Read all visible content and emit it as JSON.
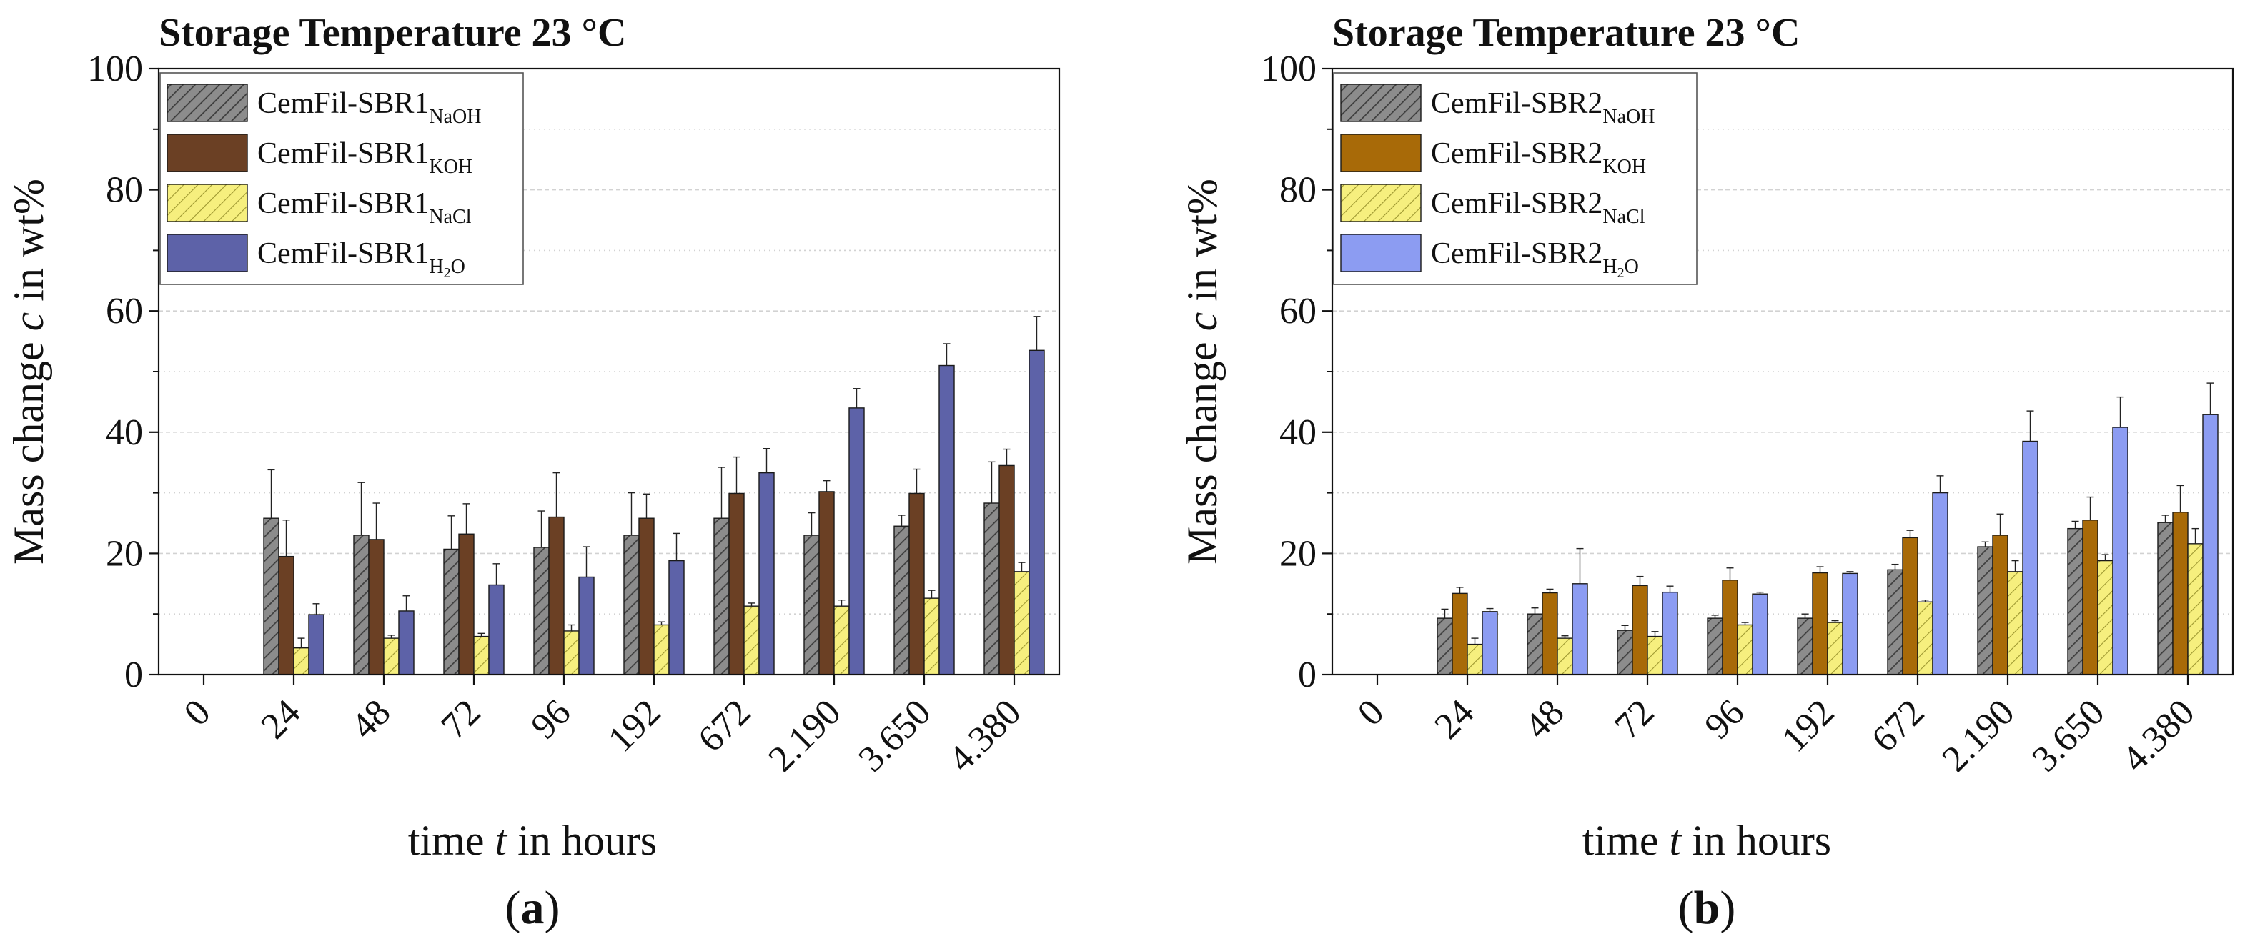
{
  "patterns": {
    "hatch_dark": "#5a5a5a",
    "hatch_yellow_fill": "#f6ef7e",
    "hatch_yellow_line": "#a09a30"
  },
  "chart_data": [
    {
      "type": "bar",
      "panel_label": "(a)",
      "title": "Storage Temperature 23 °C",
      "xlabel": {
        "text": "time ",
        "italic": "t",
        "rest": " in hours"
      },
      "ylabel": {
        "text": "Mass change ",
        "italic": "c",
        "rest": " in wt%"
      },
      "ylim": [
        0,
        100
      ],
      "yticks": [
        "0",
        "20",
        "40",
        "60",
        "80",
        "100"
      ],
      "grid": true,
      "legend_position": "top-left",
      "categories": [
        "0",
        "24",
        "48",
        "72",
        "96",
        "192",
        "672",
        "2.190",
        "3.650",
        "4.380"
      ],
      "series": [
        {
          "name": "CemFil-SBR1",
          "sub": "NaOH",
          "fill": "#8c8c8c",
          "pattern": "hatch_dark",
          "values": [
            0,
            25.8,
            23.0,
            20.7,
            21.0,
            23.0,
            25.8,
            23.0,
            24.5,
            28.3
          ],
          "errors": [
            0,
            8.0,
            8.7,
            5.5,
            6.0,
            7.0,
            8.4,
            3.7,
            1.8,
            6.8
          ]
        },
        {
          "name": "CemFil-SBR1",
          "sub": "KOH",
          "fill": "#6b4024",
          "pattern": "",
          "values": [
            0,
            19.5,
            22.3,
            23.2,
            26.0,
            25.8,
            29.9,
            30.2,
            29.9,
            34.5
          ],
          "errors": [
            0,
            6.0,
            6.0,
            5.0,
            7.3,
            4.0,
            6.0,
            1.8,
            4.0,
            2.7
          ]
        },
        {
          "name": "CemFil-SBR1",
          "sub": "NaCl",
          "fill": "#f6ef7e",
          "pattern": "hatch_yellow",
          "values": [
            0,
            4.4,
            6.0,
            6.3,
            7.2,
            8.2,
            11.3,
            11.3,
            12.6,
            17.0
          ],
          "errors": [
            0,
            1.6,
            0.5,
            0.5,
            1.0,
            0.5,
            0.5,
            1.0,
            1.3,
            1.5
          ]
        },
        {
          "name": "CemFil-SBR1",
          "sub": "H2O",
          "fill": "#5d62a8",
          "pattern": "",
          "values": [
            0,
            9.9,
            10.5,
            14.8,
            16.1,
            18.8,
            33.3,
            44.0,
            51.0,
            53.5
          ],
          "errors": [
            0,
            1.8,
            2.5,
            3.5,
            5.0,
            4.5,
            4.0,
            3.2,
            3.6,
            5.6
          ]
        }
      ]
    },
    {
      "type": "bar",
      "panel_label": "(b)",
      "title": "Storage Temperature 23 °C",
      "xlabel": {
        "text": "time ",
        "italic": "t",
        "rest": " in hours"
      },
      "ylabel": {
        "text": "Mass change ",
        "italic": "c",
        "rest": " in wt%"
      },
      "ylim": [
        0,
        100
      ],
      "yticks": [
        "0",
        "20",
        "40",
        "60",
        "80",
        "100"
      ],
      "grid": true,
      "legend_position": "top-left",
      "categories": [
        "0",
        "24",
        "48",
        "72",
        "96",
        "192",
        "672",
        "2.190",
        "3.650",
        "4.380"
      ],
      "series": [
        {
          "name": "CemFil-SBR2",
          "sub": "NaOH",
          "fill": "#8c8c8c",
          "pattern": "hatch_dark",
          "values": [
            0,
            9.3,
            10.0,
            7.3,
            9.3,
            9.3,
            17.3,
            21.1,
            24.1,
            25.1
          ],
          "errors": [
            0,
            1.5,
            1.0,
            0.8,
            0.5,
            0.7,
            0.9,
            0.8,
            1.2,
            1.2
          ]
        },
        {
          "name": "CemFil-SBR2",
          "sub": "KOH",
          "fill": "#a86a08",
          "pattern": "",
          "values": [
            0,
            13.4,
            13.5,
            14.7,
            15.6,
            16.8,
            22.6,
            23.0,
            25.5,
            26.8
          ],
          "errors": [
            0,
            1.0,
            0.6,
            1.5,
            2.0,
            1.0,
            1.2,
            3.5,
            3.8,
            4.4
          ]
        },
        {
          "name": "CemFil-SBR2",
          "sub": "NaCl",
          "fill": "#f6ef7e",
          "pattern": "hatch_yellow",
          "values": [
            0,
            5.0,
            6.0,
            6.3,
            8.2,
            8.6,
            12.0,
            17.0,
            18.8,
            21.6
          ],
          "errors": [
            0,
            1.0,
            0.4,
            0.8,
            0.4,
            0.3,
            0.3,
            1.8,
            1.0,
            2.5
          ]
        },
        {
          "name": "CemFil-SBR2",
          "sub": "H2O",
          "fill": "#8c9cf2",
          "pattern": "",
          "values": [
            0,
            10.4,
            15.0,
            13.6,
            13.3,
            16.7,
            30.0,
            38.5,
            40.8,
            42.9
          ],
          "errors": [
            0,
            0.5,
            5.8,
            1.0,
            0.3,
            0.3,
            2.8,
            5.0,
            5.0,
            5.2
          ]
        }
      ]
    }
  ]
}
